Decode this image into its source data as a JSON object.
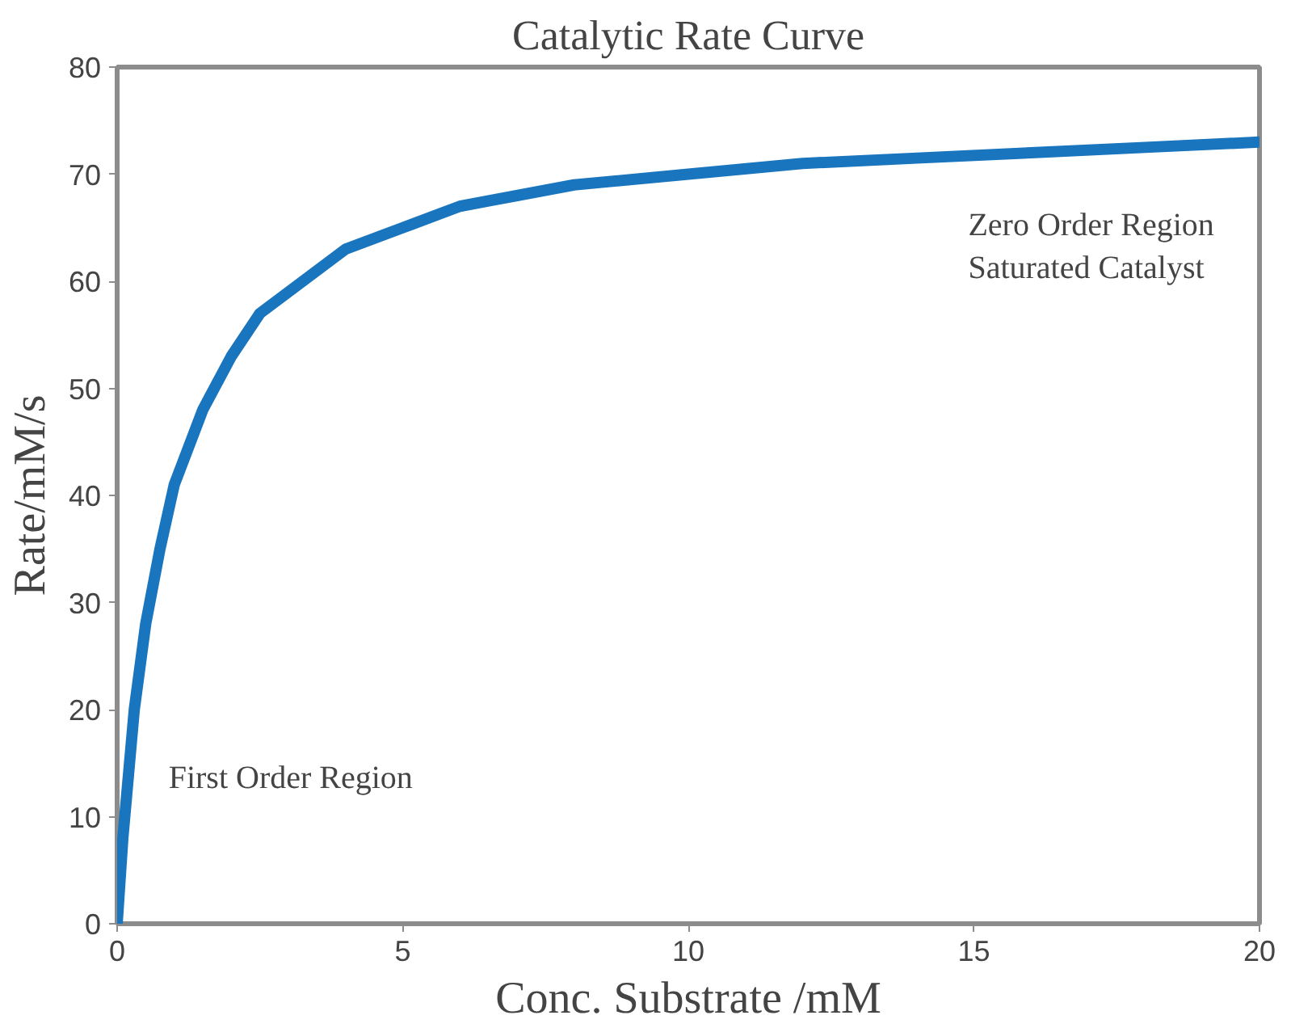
{
  "chart_data": {
    "type": "line",
    "title": "Catalytic Rate Curve",
    "xlabel": "Conc. Substrate /mM",
    "ylabel": "Rate/mM/s",
    "x": [
      0,
      0.05,
      0.1,
      0.2,
      0.3,
      0.5,
      0.75,
      1,
      1.5,
      2,
      2.5,
      3,
      4,
      5,
      6,
      7,
      8,
      10,
      12,
      14,
      16,
      18,
      20
    ],
    "series": [
      {
        "color": "#1a75bf",
        "values": [
          0,
          4,
          8,
          14,
          20,
          28,
          35,
          41,
          48,
          53,
          57,
          59,
          63,
          65,
          67,
          68,
          69,
          70,
          71,
          71.5,
          72,
          72.5,
          73
        ]
      }
    ],
    "xlim": [
      0,
      20
    ],
    "ylim": [
      0,
      80
    ],
    "xticks": [
      0,
      5,
      10,
      15,
      20
    ],
    "yticks": [
      0,
      10,
      20,
      30,
      40,
      50,
      60,
      70,
      80
    ],
    "grid": false,
    "marker": "none",
    "line_style": "solid",
    "annotations": [
      "First Order Region",
      "Zero Order Region\nSaturated Catalyst"
    ]
  }
}
